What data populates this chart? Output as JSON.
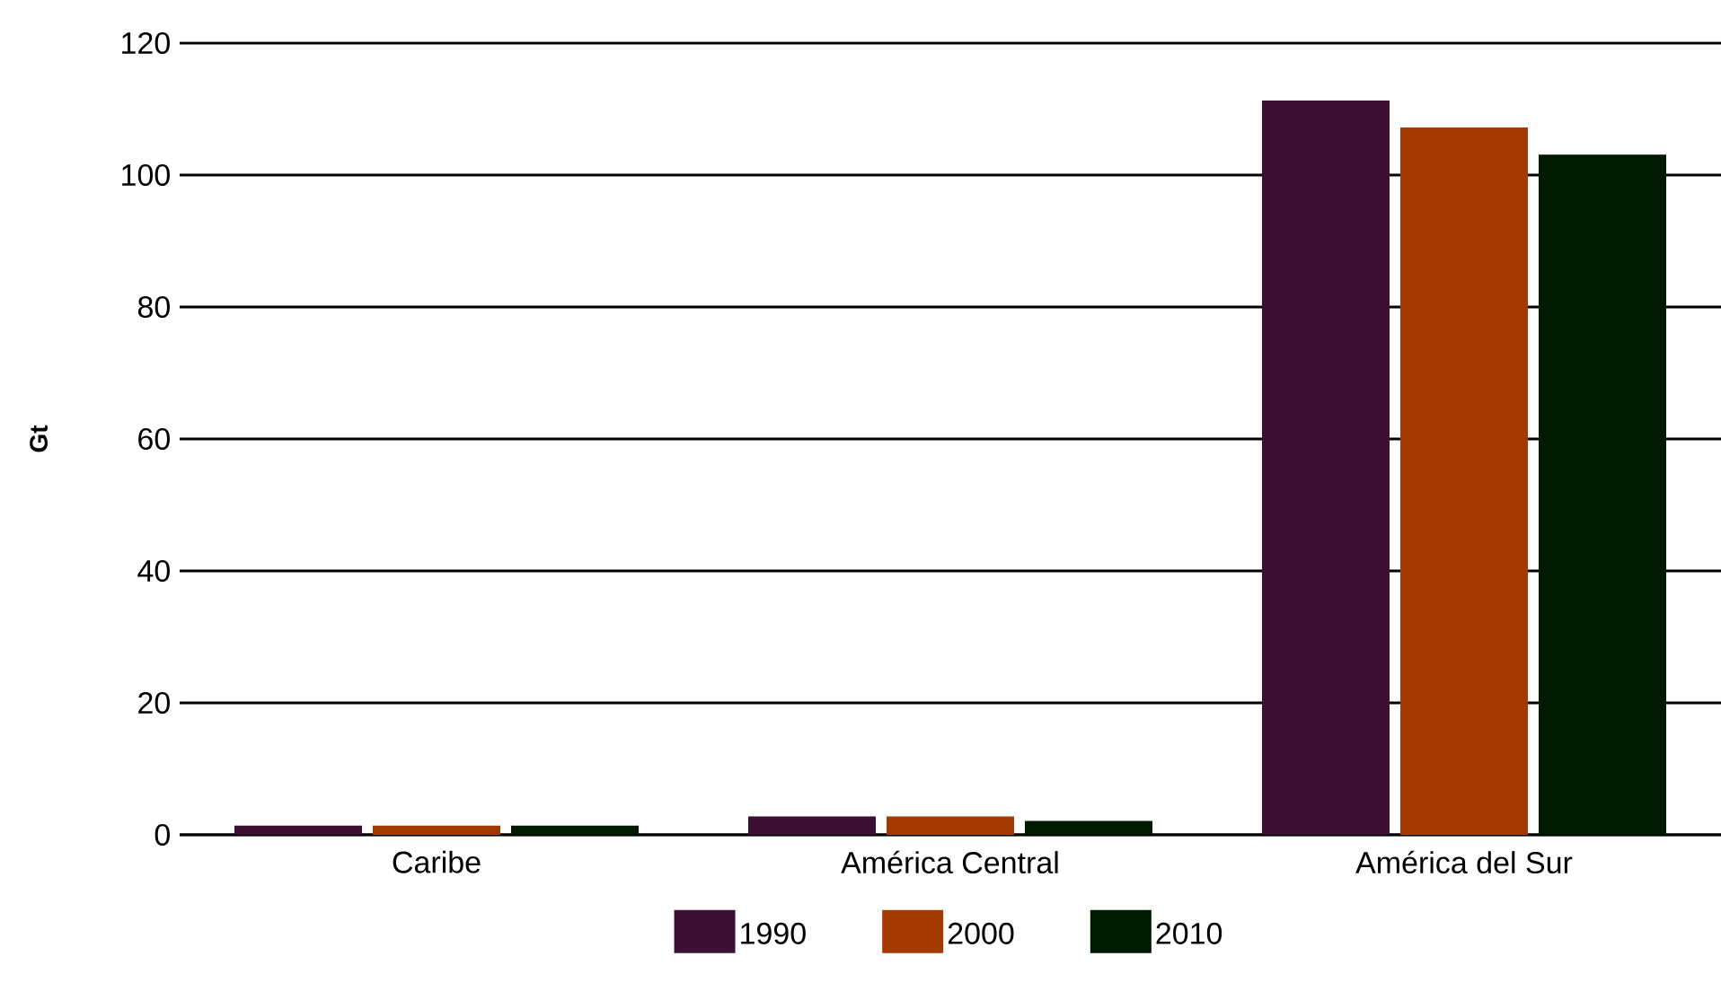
{
  "chart_data": {
    "type": "bar",
    "ylabel": "Gt",
    "categories": [
      "Caribe",
      "América Central",
      "América del Sur"
    ],
    "series": [
      {
        "name": "1990",
        "color": "#3b1033",
        "values": [
          1.4,
          2.8,
          111.3
        ]
      },
      {
        "name": "2000",
        "color": "#a33a00",
        "values": [
          1.4,
          2.8,
          107.2
        ]
      },
      {
        "name": "2010",
        "color": "#001a00",
        "values": [
          1.4,
          2.1,
          103.1
        ]
      }
    ],
    "ylim": [
      0,
      120
    ],
    "yticks": [
      0,
      20,
      40,
      60,
      80,
      100,
      120
    ],
    "grid": "y",
    "legend": "bottom"
  }
}
